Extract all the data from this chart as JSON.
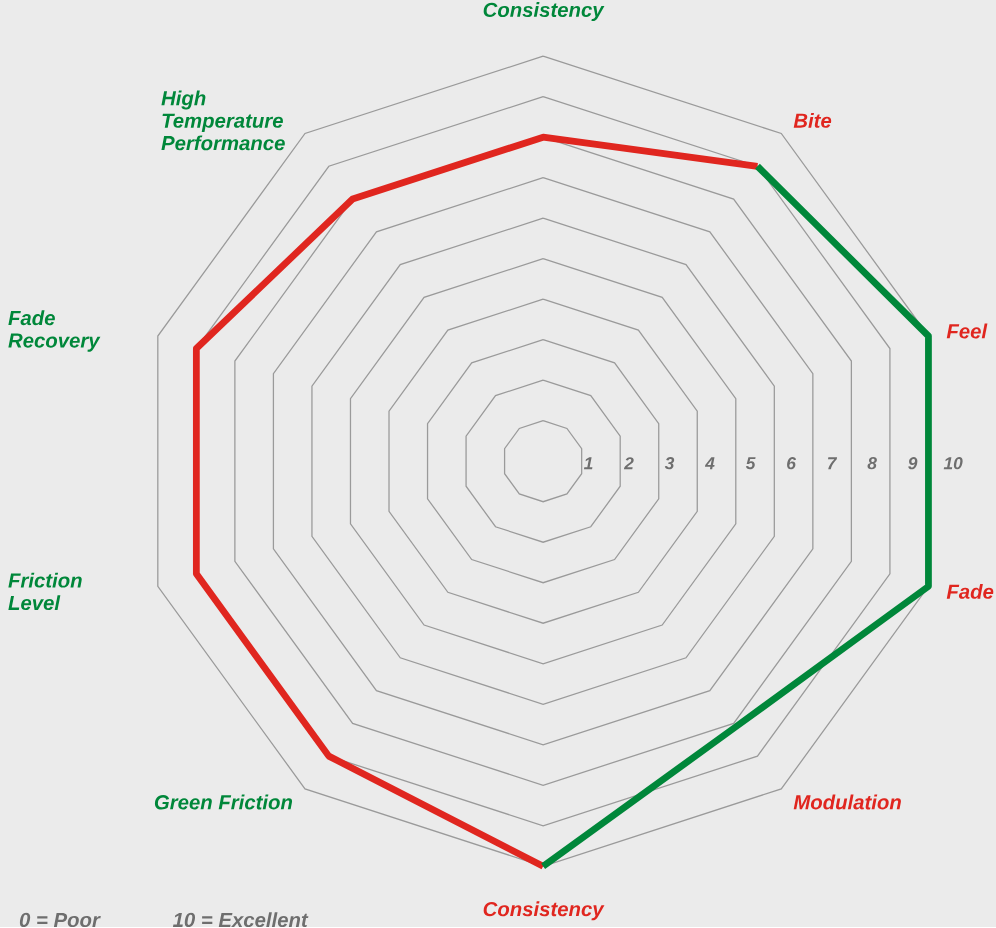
{
  "chart_data": {
    "type": "radar",
    "categories": [
      "Consistency",
      "Bite",
      "Feel",
      "Fade",
      "Modulation",
      "Consistency",
      "Green Friction",
      "Friction Level",
      "Fade Recovery",
      "High Temperature Performance"
    ],
    "series": [
      {
        "color": "#e0261f",
        "values": [
          8,
          9,
          null,
          null,
          null,
          10,
          9,
          9,
          9,
          8
        ]
      },
      {
        "color": "#00873a",
        "values": [
          null,
          9,
          10,
          10,
          8.1,
          10,
          null,
          null,
          null,
          null
        ]
      }
    ],
    "ylim": [
      0,
      10
    ],
    "yticks": [
      1,
      2,
      3,
      4,
      5,
      6,
      7,
      8,
      9,
      10
    ],
    "annotations": [
      "0 = Poor",
      "10 = Excellent"
    ]
  }
}
